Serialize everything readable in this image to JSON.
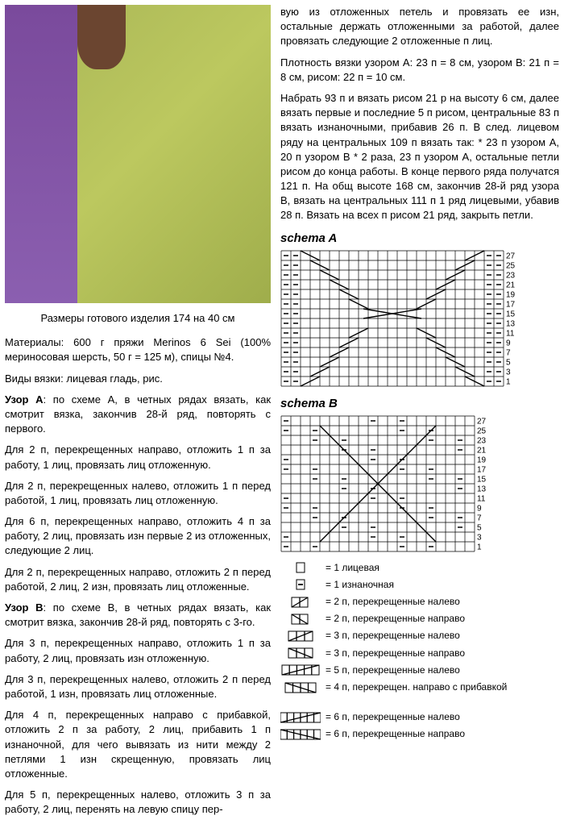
{
  "photo_alt": "Knitted chartreuse green scarf/wrap worn over purple coat",
  "caption": "Размеры готового изделия 174 на 40 см",
  "left_paragraphs": [
    "Материалы: 600 г пряжи Merinos 6 Sei (100% мериносовая шерсть, 50 г = 125 м), спицы №4.",
    "Виды вязки: лицевая гладь, рис.",
    "<b>Узор А</b>: по схеме А, в четных рядах вязать, как смотрит вязка, закончив 28-й ряд, повторять с первого.",
    "Для 2 п, перекрещенных направо, отложить 1 п за работу, 1 лиц, провязать лиц отложенную.",
    "Для 2 п, перекрещенных налево, отложить 1 п перед работой, 1 лиц, провязать лиц отложенную.",
    "Для 6 п, перекрещенных направо, отложить 4 п за работу, 2 лиц, провязать изн первые 2 из отложенных, следующие 2 лиц.",
    "Для 2 п, перекрещенных направо, отложить 2 п перед работой, 2 лиц, 2 изн, провязать лиц отложенные.",
    "<b>Узор В</b>: по схеме В, в четных рядах вязать, как смотрит вязка, закончив 28-й ряд, повторять с 3-го.",
    "Для 3 п, перекрещенных направо, отложить 1 п за работу, 2 лиц, провязать изн отложенную.",
    "Для 3 п, перекрещенных налево, отложить 2 п перед работой, 1 изн, провязать лиц отложенные.",
    "Для 4 п, перекрещенных направо с прибавкой, отложить 2 п за работу, 2 лиц, прибавить 1 п изнаночной, для чего вывязать из нити между 2 петлями 1 изн скрещенную, провязать лиц отложенные.",
    "Для 5 п, перекрещенных налево, отложить 3 п за работу, 2 лиц, перенять на левую спицу пер-"
  ],
  "right_paragraphs": [
    "вую из отложенных петель и провязать ее изн, остальные держать отложенными за работой, далее провязать следующие 2 отложенные п лиц.",
    "Плотность вязки узором А: 23 п = 8 см, узором В: 21 п = 8 см, рисом: 22 п = 10 см.",
    "Набрать 93 п и вязать рисом 21 р на высоту 6 см, далее вязать первые и последние 5 п рисом, центральные 83 п вязать изнаночными, прибавив 26 п. В след. лицевом ряду на центральных 109 п вязать так: * 23 п узором А, 20 п узором В * 2 раза, 23 п узором А, остальные петли рисом до конца работы. В конце первого ряда получатся 121 п. На общ высоте 168 см, закончив 28-й ряд узора В, вязать на центральных 111 п 1 ряд лицевыми, убавив 28 п. Вязать на всех п рисом 21 ряд, закрыть петли."
  ],
  "schemaA": {
    "title": "schema A",
    "cols": 23,
    "rows": 14,
    "row_labels": [
      "27",
      "25",
      "23",
      "21",
      "19",
      "17",
      "15",
      "13",
      "11",
      "9",
      "7",
      "5",
      "3",
      "1"
    ]
  },
  "schemaB": {
    "title": "schema B",
    "cols": 20,
    "rows": 14,
    "row_labels": [
      "27",
      "25",
      "23",
      "21",
      "19",
      "17",
      "15",
      "13",
      "11",
      "9",
      "7",
      "5",
      "3",
      "1"
    ]
  },
  "legend": [
    {
      "sym": "box",
      "text": "= 1 лицевая"
    },
    {
      "sym": "dash",
      "text": "= 1 изнаночная"
    },
    {
      "sym": "diag2l",
      "text": "= 2 п, перекрещенные налево"
    },
    {
      "sym": "diag2r",
      "text": "= 2 п, перекрещенные направо"
    },
    {
      "sym": "diag3l",
      "text": "= 3 п, перекрещенные налево"
    },
    {
      "sym": "diag3r",
      "text": "= 3 п, перекрещенные направо"
    },
    {
      "sym": "diag5l",
      "text": "= 5 п, перекрещенные налево"
    },
    {
      "sym": "diag4rp",
      "text": "= 4 п, перекрещен. направо с прибавкой"
    },
    {
      "sym": "blank",
      "text": ""
    },
    {
      "sym": "diag6l",
      "text": "= 6 п, перекрещенные налево"
    },
    {
      "sym": "diag6r",
      "text": "= 6 п, перекрещенные направо"
    }
  ],
  "colors": {
    "grid": "#000000",
    "bg": "#ffffff"
  }
}
